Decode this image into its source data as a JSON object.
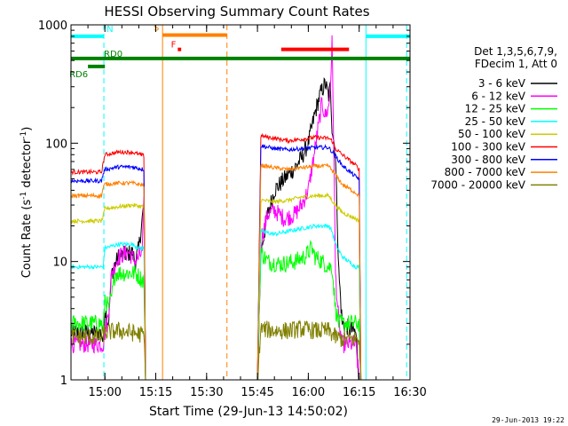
{
  "chart_data": {
    "type": "line",
    "title": "HESSI Observing Summary Count Rates",
    "xlabel": "Start Time (29-Jun-13 14:50:02)",
    "ylabel_main": "Count Rate (s",
    "ylabel_sup1": "-1",
    "ylabel_mid": " detector",
    "ylabel_sup2": "-1",
    "ylabel_end": ")",
    "y_scale": "log",
    "ylim": [
      1,
      1000
    ],
    "xlim_minutes": [
      0,
      100
    ],
    "x_ticks": [
      {
        "label": "15:00",
        "min": 10
      },
      {
        "label": "15:15",
        "min": 25
      },
      {
        "label": "15:30",
        "min": 40
      },
      {
        "label": "15:45",
        "min": 55
      },
      {
        "label": "16:00",
        "min": 70
      },
      {
        "label": "16:15",
        "min": 85
      },
      {
        "label": "16:30",
        "min": 100
      }
    ],
    "y_ticks": [
      {
        "label": "1",
        "v": 1
      },
      {
        "label": "10",
        "v": 10
      },
      {
        "label": "100",
        "v": 100
      },
      {
        "label": "1000",
        "v": 1000
      }
    ],
    "legend_header": [
      "Det 1,3,5,6,7,9,",
      "FDecim 1, Att 0"
    ],
    "legend_position": "right",
    "timestamp": "29-Jun-2013 19:22",
    "series": [
      {
        "name": "3 - 6 keV",
        "color": "#000000",
        "points": [
          [
            0,
            2.5
          ],
          [
            9,
            2.5
          ],
          [
            9.5,
            2
          ],
          [
            10,
            4
          ],
          [
            11,
            3
          ],
          [
            12,
            8
          ],
          [
            14,
            11
          ],
          [
            18,
            12
          ],
          [
            19,
            10
          ],
          [
            20,
            13
          ],
          [
            21.5,
            30
          ],
          [
            22,
            1
          ],
          [
            55,
            1
          ],
          [
            56,
            12
          ],
          [
            58,
            25
          ],
          [
            60,
            40
          ],
          [
            63,
            50
          ],
          [
            66,
            62
          ],
          [
            68,
            75
          ],
          [
            70,
            100
          ],
          [
            72,
            180
          ],
          [
            73.5,
            260
          ],
          [
            75,
            320
          ],
          [
            76,
            250
          ],
          [
            76.5,
            300
          ],
          [
            77,
            140
          ],
          [
            78,
            80
          ],
          [
            79,
            8
          ],
          [
            80,
            3
          ],
          [
            84,
            2.5
          ],
          [
            85,
            1
          ]
        ]
      },
      {
        "name": "6 - 12 keV",
        "color": "#ff00ff",
        "points": [
          [
            0,
            2
          ],
          [
            9,
            2
          ],
          [
            9.5,
            2
          ],
          [
            10,
            2.5
          ],
          [
            11,
            3.5
          ],
          [
            12,
            8
          ],
          [
            14,
            11
          ],
          [
            17,
            12
          ],
          [
            19,
            10
          ],
          [
            21,
            12
          ],
          [
            21.5,
            30
          ],
          [
            22,
            1
          ],
          [
            55,
            1
          ],
          [
            56,
            15
          ],
          [
            58,
            25
          ],
          [
            60,
            27
          ],
          [
            63,
            23
          ],
          [
            66,
            25
          ],
          [
            68,
            30
          ],
          [
            70,
            40
          ],
          [
            72,
            90
          ],
          [
            73,
            140
          ],
          [
            74,
            220
          ],
          [
            75,
            170
          ],
          [
            76,
            200
          ],
          [
            76.5,
            300
          ],
          [
            77,
            700
          ],
          [
            77.5,
            100
          ],
          [
            78,
            8
          ],
          [
            79,
            3
          ],
          [
            80,
            2
          ],
          [
            84,
            2
          ],
          [
            85,
            1
          ]
        ]
      },
      {
        "name": "12 - 25 keV",
        "color": "#00ff00",
        "points": [
          [
            0,
            3
          ],
          [
            9,
            3
          ],
          [
            9.5,
            2.5
          ],
          [
            10,
            5
          ],
          [
            11,
            4
          ],
          [
            12,
            5
          ],
          [
            13,
            8
          ],
          [
            16,
            8
          ],
          [
            19,
            8
          ],
          [
            21,
            7
          ],
          [
            21.5,
            7
          ],
          [
            22,
            1
          ],
          [
            55,
            1
          ],
          [
            56,
            12
          ],
          [
            58,
            10
          ],
          [
            62,
            9.5
          ],
          [
            66,
            10
          ],
          [
            69,
            11
          ],
          [
            71,
            13
          ],
          [
            72,
            11
          ],
          [
            74,
            10
          ],
          [
            76,
            9
          ],
          [
            77,
            9
          ],
          [
            78,
            4
          ],
          [
            79,
            3
          ],
          [
            85,
            3
          ],
          [
            85.5,
            1
          ]
        ]
      },
      {
        "name": "25 - 50 keV",
        "color": "#00ffff",
        "points": [
          [
            0,
            9
          ],
          [
            9,
            9
          ],
          [
            9.5,
            9
          ],
          [
            10,
            13
          ],
          [
            14,
            14
          ],
          [
            18,
            14
          ],
          [
            20,
            13
          ],
          [
            21.5,
            13
          ],
          [
            22,
            1
          ],
          [
            55,
            1
          ],
          [
            56,
            18
          ],
          [
            60,
            17
          ],
          [
            64,
            18
          ],
          [
            68,
            19
          ],
          [
            72,
            20
          ],
          [
            76,
            20
          ],
          [
            77,
            18
          ],
          [
            78,
            14
          ],
          [
            80,
            11
          ],
          [
            84,
            9
          ],
          [
            85,
            9
          ],
          [
            85.5,
            1
          ]
        ]
      },
      {
        "name": "50 - 100 keV",
        "color": "#cccc00",
        "points": [
          [
            0,
            22
          ],
          [
            9,
            22
          ],
          [
            9.5,
            24
          ],
          [
            10,
            28
          ],
          [
            14,
            29
          ],
          [
            18,
            30
          ],
          [
            21.5,
            29
          ],
          [
            22,
            1
          ],
          [
            55,
            1
          ],
          [
            56,
            33
          ],
          [
            60,
            32
          ],
          [
            64,
            33
          ],
          [
            68,
            35
          ],
          [
            72,
            36
          ],
          [
            76,
            36
          ],
          [
            78,
            30
          ],
          [
            80,
            26
          ],
          [
            84,
            23
          ],
          [
            85,
            22
          ],
          [
            85.5,
            1
          ]
        ]
      },
      {
        "name": "100 - 300 keV",
        "color": "#ff0000",
        "points": [
          [
            0,
            57
          ],
          [
            9,
            57
          ],
          [
            9.5,
            68
          ],
          [
            10,
            80
          ],
          [
            14,
            84
          ],
          [
            18,
            84
          ],
          [
            21.5,
            78
          ],
          [
            22,
            1
          ],
          [
            55,
            1
          ],
          [
            56,
            115
          ],
          [
            60,
            110
          ],
          [
            64,
            105
          ],
          [
            68,
            108
          ],
          [
            72,
            112
          ],
          [
            76,
            110
          ],
          [
            77,
            105
          ],
          [
            78,
            90
          ],
          [
            80,
            80
          ],
          [
            84,
            65
          ],
          [
            85,
            60
          ],
          [
            85.5,
            1
          ]
        ]
      },
      {
        "name": "300 - 800 keV",
        "color": "#0000ff",
        "points": [
          [
            0,
            48
          ],
          [
            9,
            48
          ],
          [
            9.5,
            55
          ],
          [
            10,
            60
          ],
          [
            14,
            63
          ],
          [
            18,
            63
          ],
          [
            21.5,
            60
          ],
          [
            22,
            1
          ],
          [
            55,
            1
          ],
          [
            56,
            95
          ],
          [
            60,
            90
          ],
          [
            64,
            88
          ],
          [
            68,
            90
          ],
          [
            72,
            92
          ],
          [
            76,
            92
          ],
          [
            78,
            78
          ],
          [
            80,
            65
          ],
          [
            84,
            52
          ],
          [
            85,
            50
          ],
          [
            85.5,
            1
          ]
        ]
      },
      {
        "name": "800 - 7000 keV",
        "color": "#ff8000",
        "points": [
          [
            0,
            36
          ],
          [
            9,
            36
          ],
          [
            9.5,
            42
          ],
          [
            10,
            45
          ],
          [
            14,
            46
          ],
          [
            18,
            46
          ],
          [
            21.5,
            44
          ],
          [
            22,
            1
          ],
          [
            55,
            1
          ],
          [
            56,
            65
          ],
          [
            60,
            62
          ],
          [
            64,
            60
          ],
          [
            68,
            62
          ],
          [
            72,
            64
          ],
          [
            76,
            64
          ],
          [
            78,
            54
          ],
          [
            80,
            45
          ],
          [
            84,
            38
          ],
          [
            85,
            36
          ],
          [
            85.5,
            1
          ]
        ]
      },
      {
        "name": "7000 - 20000 keV",
        "color": "#808000",
        "points": [
          [
            0,
            2.3
          ],
          [
            9,
            2.3
          ],
          [
            10,
            2.5
          ],
          [
            14,
            2.6
          ],
          [
            18,
            2.5
          ],
          [
            21.5,
            2.4
          ],
          [
            22,
            1
          ],
          [
            55,
            1
          ],
          [
            56,
            2.7
          ],
          [
            60,
            2.6
          ],
          [
            64,
            2.6
          ],
          [
            68,
            2.7
          ],
          [
            72,
            2.6
          ],
          [
            76,
            2.6
          ],
          [
            78,
            2.3
          ],
          [
            80,
            2.2
          ],
          [
            84,
            2.2
          ],
          [
            85,
            2.2
          ],
          [
            85.5,
            1
          ]
        ]
      }
    ],
    "flags": [
      {
        "name": "N",
        "color": "#00ffff",
        "segments": [
          [
            0,
            9.7
          ],
          [
            87,
            100
          ]
        ],
        "y": 800
      },
      {
        "name": "S",
        "color": "#ff8000",
        "segments": [
          [
            27,
            46
          ]
        ],
        "y": 820
      },
      {
        "name": "F",
        "color": "#ff0000",
        "segments": [
          [
            31.5,
            32.5
          ],
          [
            62,
            82
          ]
        ],
        "y": 620
      },
      {
        "name": "RD0",
        "color": "#008000",
        "segments": [
          [
            0,
            100
          ]
        ],
        "y": 520
      },
      {
        "name": "RD6",
        "color": "#008000",
        "segments": [
          [
            5,
            10
          ]
        ],
        "y": 445
      }
    ],
    "vlines": [
      {
        "min": 0,
        "color": "#00ffff",
        "dashed": false
      },
      {
        "min": 9.7,
        "color": "#00ffff",
        "dashed": true
      },
      {
        "min": 27,
        "color": "#ff8000",
        "dashed": false
      },
      {
        "min": 46,
        "color": "#ff8000",
        "dashed": true
      },
      {
        "min": 87,
        "color": "#00ffff",
        "dashed": false
      },
      {
        "min": 99,
        "color": "#00ffff",
        "dashed": true
      }
    ]
  }
}
